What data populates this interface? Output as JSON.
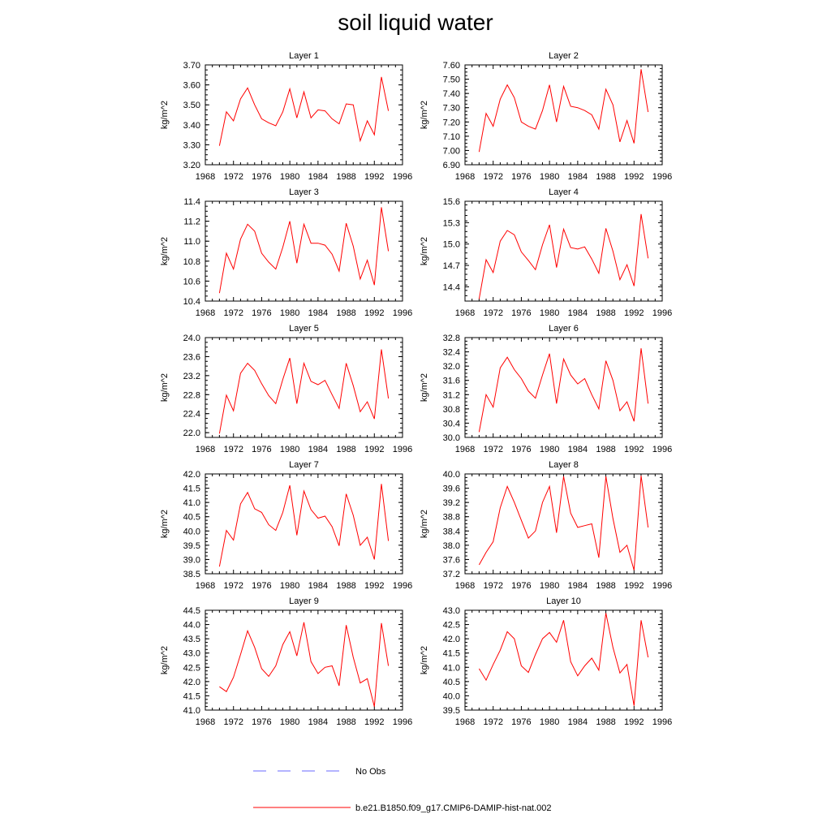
{
  "title": "soil liquid water",
  "legend": {
    "placement": "bottom",
    "entries": [
      {
        "label": "No Obs",
        "color": "#6a6aff",
        "dash": "dashed"
      },
      {
        "label": "b.e21.B1850.f09_g17.CMIP6-DAMIP-hist-nat.002",
        "color": "#ff0000",
        "dash": "solid"
      }
    ]
  },
  "chart_data": [
    {
      "type": "line",
      "title": "Layer 1",
      "ylabel": "kg/m^2",
      "xlim": [
        1968,
        1996
      ],
      "xticks": [
        1968,
        1972,
        1976,
        1980,
        1984,
        1988,
        1992,
        1996
      ],
      "ylim": [
        3.2,
        3.7
      ],
      "yticks": [
        "3.20",
        "3.30",
        "3.40",
        "3.50",
        "3.60",
        "3.70"
      ],
      "series": [
        {
          "color": "#ff0000",
          "x": [
            1970,
            1971,
            1972,
            1973,
            1974,
            1975,
            1976,
            1977,
            1978,
            1979,
            1980,
            1981,
            1982,
            1983,
            1984,
            1985,
            1986,
            1987,
            1988,
            1989,
            1990,
            1991,
            1992,
            1993,
            1994
          ],
          "values": [
            3.295,
            3.465,
            3.42,
            3.53,
            3.585,
            3.5,
            3.43,
            3.41,
            3.395,
            3.465,
            3.58,
            3.435,
            3.565,
            3.435,
            3.475,
            3.47,
            3.43,
            3.405,
            3.505,
            3.5,
            3.32,
            3.42,
            3.35,
            3.64,
            3.47
          ]
        }
      ]
    },
    {
      "type": "line",
      "title": "Layer 2",
      "ylabel": "kg/m^2",
      "xlim": [
        1968,
        1996
      ],
      "xticks": [
        1968,
        1972,
        1976,
        1980,
        1984,
        1988,
        1992,
        1996
      ],
      "ylim": [
        6.9,
        7.6
      ],
      "yticks": [
        "6.90",
        "7.00",
        "7.10",
        "7.20",
        "7.30",
        "7.40",
        "7.50",
        "7.60"
      ],
      "series": [
        {
          "color": "#ff0000",
          "x": [
            1970,
            1971,
            1972,
            1973,
            1974,
            1975,
            1976,
            1977,
            1978,
            1979,
            1980,
            1981,
            1982,
            1983,
            1984,
            1985,
            1986,
            1987,
            1988,
            1989,
            1990,
            1991,
            1992,
            1993,
            1994
          ],
          "values": [
            6.99,
            7.26,
            7.17,
            7.36,
            7.46,
            7.37,
            7.2,
            7.17,
            7.15,
            7.28,
            7.46,
            7.2,
            7.45,
            7.31,
            7.3,
            7.28,
            7.25,
            7.15,
            7.43,
            7.32,
            7.06,
            7.21,
            7.05,
            7.57,
            7.27
          ]
        }
      ]
    },
    {
      "type": "line",
      "title": "Layer 3",
      "ylabel": "kg/m^2",
      "xlim": [
        1968,
        1996
      ],
      "xticks": [
        1968,
        1972,
        1976,
        1980,
        1984,
        1988,
        1992,
        1996
      ],
      "ylim": [
        10.4,
        11.4
      ],
      "yticks": [
        "10.4",
        "10.6",
        "10.8",
        "11.0",
        "11.2",
        "11.4"
      ],
      "series": [
        {
          "color": "#ff0000",
          "x": [
            1970,
            1971,
            1972,
            1973,
            1974,
            1975,
            1976,
            1977,
            1978,
            1979,
            1980,
            1981,
            1982,
            1983,
            1984,
            1985,
            1986,
            1987,
            1988,
            1989,
            1990,
            1991,
            1992,
            1993,
            1994
          ],
          "values": [
            10.48,
            10.88,
            10.72,
            11.02,
            11.17,
            11.1,
            10.88,
            10.79,
            10.72,
            10.94,
            11.2,
            10.78,
            11.17,
            10.98,
            10.98,
            10.96,
            10.87,
            10.7,
            11.18,
            10.95,
            10.62,
            10.81,
            10.56,
            11.34,
            10.9
          ]
        }
      ]
    },
    {
      "type": "line",
      "title": "Layer 4",
      "ylabel": "kg/m^2",
      "xlim": [
        1968,
        1996
      ],
      "xticks": [
        1968,
        1972,
        1976,
        1980,
        1984,
        1988,
        1992,
        1996
      ],
      "ylim": [
        14.2,
        15.6
      ],
      "yticks": [
        "14.4",
        "14.7",
        "15.0",
        "15.3",
        "15.6"
      ],
      "series": [
        {
          "color": "#ff0000",
          "x": [
            1970,
            1971,
            1972,
            1973,
            1974,
            1975,
            1976,
            1977,
            1978,
            1979,
            1980,
            1981,
            1982,
            1983,
            1984,
            1985,
            1986,
            1987,
            1988,
            1989,
            1990,
            1991,
            1992,
            1993,
            1994
          ],
          "values": [
            14.23,
            14.78,
            14.6,
            15.04,
            15.19,
            15.13,
            14.89,
            14.77,
            14.64,
            14.99,
            15.27,
            14.67,
            15.21,
            14.95,
            14.93,
            14.96,
            14.79,
            14.59,
            15.22,
            14.9,
            14.5,
            14.71,
            14.41,
            15.42,
            14.8
          ]
        }
      ]
    },
    {
      "type": "line",
      "title": "Layer 5",
      "ylabel": "kg/m^2",
      "xlim": [
        1968,
        1996
      ],
      "xticks": [
        1968,
        1972,
        1976,
        1980,
        1984,
        1988,
        1992,
        1996
      ],
      "ylim": [
        21.9,
        24.0
      ],
      "yticks": [
        "22.0",
        "22.4",
        "22.8",
        "23.2",
        "23.6",
        "24.0"
      ],
      "series": [
        {
          "color": "#ff0000",
          "x": [
            1970,
            1971,
            1972,
            1973,
            1974,
            1975,
            1976,
            1977,
            1978,
            1979,
            1980,
            1981,
            1982,
            1983,
            1984,
            1985,
            1986,
            1987,
            1988,
            1989,
            1990,
            1991,
            1992,
            1993,
            1994
          ],
          "values": [
            21.98,
            22.79,
            22.46,
            23.25,
            23.46,
            23.31,
            23.03,
            22.78,
            22.61,
            23.12,
            23.57,
            22.61,
            23.46,
            23.08,
            23.01,
            23.1,
            22.8,
            22.51,
            23.46,
            22.99,
            22.44,
            22.65,
            22.29,
            23.75,
            22.72
          ]
        }
      ]
    },
    {
      "type": "line",
      "title": "Layer 6",
      "ylabel": "kg/m^2",
      "xlim": [
        1968,
        1996
      ],
      "xticks": [
        1968,
        1972,
        1976,
        1980,
        1984,
        1988,
        1992,
        1996
      ],
      "ylim": [
        30.0,
        32.8
      ],
      "yticks": [
        "30.0",
        "30.4",
        "30.8",
        "31.2",
        "31.6",
        "32.0",
        "32.4",
        "32.8"
      ],
      "series": [
        {
          "color": "#ff0000",
          "x": [
            1970,
            1971,
            1972,
            1973,
            1974,
            1975,
            1976,
            1977,
            1978,
            1979,
            1980,
            1981,
            1982,
            1983,
            1984,
            1985,
            1986,
            1987,
            1988,
            1989,
            1990,
            1991,
            1992,
            1993,
            1994
          ],
          "values": [
            30.15,
            31.2,
            30.85,
            31.95,
            32.25,
            31.9,
            31.65,
            31.3,
            31.1,
            31.75,
            32.35,
            30.95,
            32.2,
            31.75,
            31.5,
            31.65,
            31.2,
            30.8,
            32.15,
            31.6,
            30.75,
            31.0,
            30.45,
            32.5,
            30.95
          ]
        }
      ]
    },
    {
      "type": "line",
      "title": "Layer 7",
      "ylabel": "kg/m^2",
      "xlim": [
        1968,
        1996
      ],
      "xticks": [
        1968,
        1972,
        1976,
        1980,
        1984,
        1988,
        1992,
        1996
      ],
      "ylim": [
        38.5,
        42.0
      ],
      "yticks": [
        "38.5",
        "39.0",
        "39.5",
        "40.0",
        "40.5",
        "41.0",
        "41.5",
        "42.0"
      ],
      "series": [
        {
          "color": "#ff0000",
          "x": [
            1970,
            1971,
            1972,
            1973,
            1974,
            1975,
            1976,
            1977,
            1978,
            1979,
            1980,
            1981,
            1982,
            1983,
            1984,
            1985,
            1986,
            1987,
            1988,
            1989,
            1990,
            1991,
            1992,
            1993,
            1994
          ],
          "values": [
            38.75,
            40.02,
            39.68,
            40.95,
            41.35,
            40.78,
            40.65,
            40.22,
            40.02,
            40.65,
            41.6,
            39.85,
            41.4,
            40.75,
            40.45,
            40.52,
            40.15,
            39.48,
            41.3,
            40.55,
            39.5,
            39.78,
            39.0,
            41.65,
            39.65
          ]
        }
      ]
    },
    {
      "type": "line",
      "title": "Layer 8",
      "ylabel": "kg/m^2",
      "xlim": [
        1968,
        1996
      ],
      "xticks": [
        1968,
        1972,
        1976,
        1980,
        1984,
        1988,
        1992,
        1996
      ],
      "ylim": [
        37.2,
        40.0
      ],
      "yticks": [
        "37.2",
        "37.6",
        "38.0",
        "38.4",
        "38.8",
        "39.2",
        "39.6",
        "40.0"
      ],
      "series": [
        {
          "color": "#ff0000",
          "x": [
            1970,
            1971,
            1972,
            1973,
            1974,
            1975,
            1976,
            1977,
            1978,
            1979,
            1980,
            1981,
            1982,
            1983,
            1984,
            1985,
            1986,
            1987,
            1988,
            1989,
            1990,
            1991,
            1992,
            1993,
            1994
          ],
          "values": [
            37.45,
            37.8,
            38.1,
            39.05,
            39.65,
            39.2,
            38.7,
            38.2,
            38.4,
            39.2,
            39.65,
            38.35,
            39.93,
            38.9,
            38.5,
            38.55,
            38.6,
            37.65,
            39.93,
            38.75,
            37.8,
            38.0,
            37.3,
            39.95,
            38.5
          ]
        }
      ]
    },
    {
      "type": "line",
      "title": "Layer 9",
      "ylabel": "kg/m^2",
      "xlim": [
        1968,
        1996
      ],
      "xticks": [
        1968,
        1972,
        1976,
        1980,
        1984,
        1988,
        1992,
        1996
      ],
      "ylim": [
        41.0,
        44.5
      ],
      "yticks": [
        "41.0",
        "41.5",
        "42.0",
        "42.5",
        "43.0",
        "43.5",
        "44.0",
        "44.5"
      ],
      "series": [
        {
          "color": "#ff0000",
          "x": [
            1970,
            1971,
            1972,
            1973,
            1974,
            1975,
            1976,
            1977,
            1978,
            1979,
            1980,
            1981,
            1982,
            1983,
            1984,
            1985,
            1986,
            1987,
            1988,
            1989,
            1990,
            1991,
            1992,
            1993,
            1994
          ],
          "values": [
            41.82,
            41.65,
            42.15,
            42.95,
            43.78,
            43.2,
            42.45,
            42.18,
            42.55,
            43.3,
            43.75,
            42.9,
            44.08,
            42.7,
            42.28,
            42.5,
            42.55,
            41.85,
            43.98,
            42.85,
            41.95,
            42.1,
            41.12,
            44.05,
            42.55
          ]
        }
      ]
    },
    {
      "type": "line",
      "title": "Layer 10",
      "ylabel": "kg/m^2",
      "xlim": [
        1968,
        1996
      ],
      "xticks": [
        1968,
        1972,
        1976,
        1980,
        1984,
        1988,
        1992,
        1996
      ],
      "ylim": [
        39.5,
        43.0
      ],
      "yticks": [
        "39.5",
        "40.0",
        "40.5",
        "41.0",
        "41.5",
        "42.0",
        "42.5",
        "43.0"
      ],
      "series": [
        {
          "color": "#ff0000",
          "x": [
            1970,
            1971,
            1972,
            1973,
            1974,
            1975,
            1976,
            1977,
            1978,
            1979,
            1980,
            1981,
            1982,
            1983,
            1984,
            1985,
            1986,
            1987,
            1988,
            1989,
            1990,
            1991,
            1992,
            1993,
            1994
          ],
          "values": [
            40.95,
            40.55,
            41.1,
            41.6,
            42.25,
            42.0,
            41.05,
            40.82,
            41.45,
            42.0,
            42.22,
            41.88,
            42.65,
            41.2,
            40.7,
            41.05,
            41.32,
            40.9,
            42.9,
            41.7,
            40.8,
            41.1,
            39.65,
            42.65,
            41.35
          ]
        }
      ]
    }
  ]
}
